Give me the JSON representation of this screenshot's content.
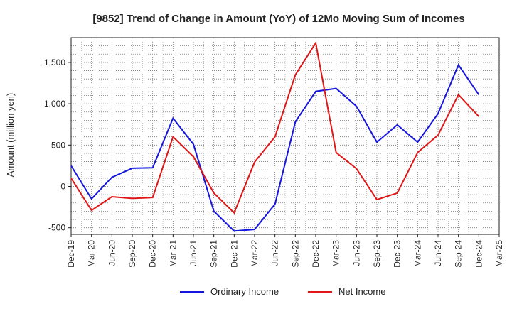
{
  "chart_data": {
    "type": "line",
    "title": "[9852]  Trend of Change in Amount (YoY) of 12Mo Moving Sum of Incomes",
    "xlabel": "",
    "ylabel": "Amount (million yen)",
    "categories": [
      "Dec-19",
      "Mar-20",
      "Jun-20",
      "Sep-20",
      "Dec-20",
      "Mar-21",
      "Jun-21",
      "Sep-21",
      "Dec-21",
      "Mar-22",
      "Jun-22",
      "Sep-22",
      "Dec-22",
      "Mar-23",
      "Jun-23",
      "Sep-23",
      "Dec-23",
      "Mar-24",
      "Jun-24",
      "Sep-24",
      "Dec-24",
      "Mar-25"
    ],
    "ylim": [
      -580,
      1800
    ],
    "yticks": [
      -500,
      0,
      500,
      1000,
      1500
    ],
    "ytick_labels": [
      "-500",
      "0",
      "500",
      "1,000",
      "1,500"
    ],
    "grid": true,
    "legend_position": "bottom",
    "series": [
      {
        "name": "Ordinary Income",
        "color": "#1515e0",
        "values": [
          250,
          -150,
          110,
          220,
          225,
          825,
          510,
          -300,
          -540,
          -520,
          -215,
          780,
          1150,
          1185,
          970,
          535,
          745,
          535,
          880,
          1470,
          1110,
          null
        ]
      },
      {
        "name": "Net Income",
        "color": "#e01515",
        "values": [
          100,
          -290,
          -125,
          -145,
          -135,
          600,
          360,
          -80,
          -320,
          295,
          600,
          1350,
          1735,
          410,
          215,
          -160,
          -80,
          410,
          620,
          1110,
          845,
          null
        ]
      }
    ]
  }
}
